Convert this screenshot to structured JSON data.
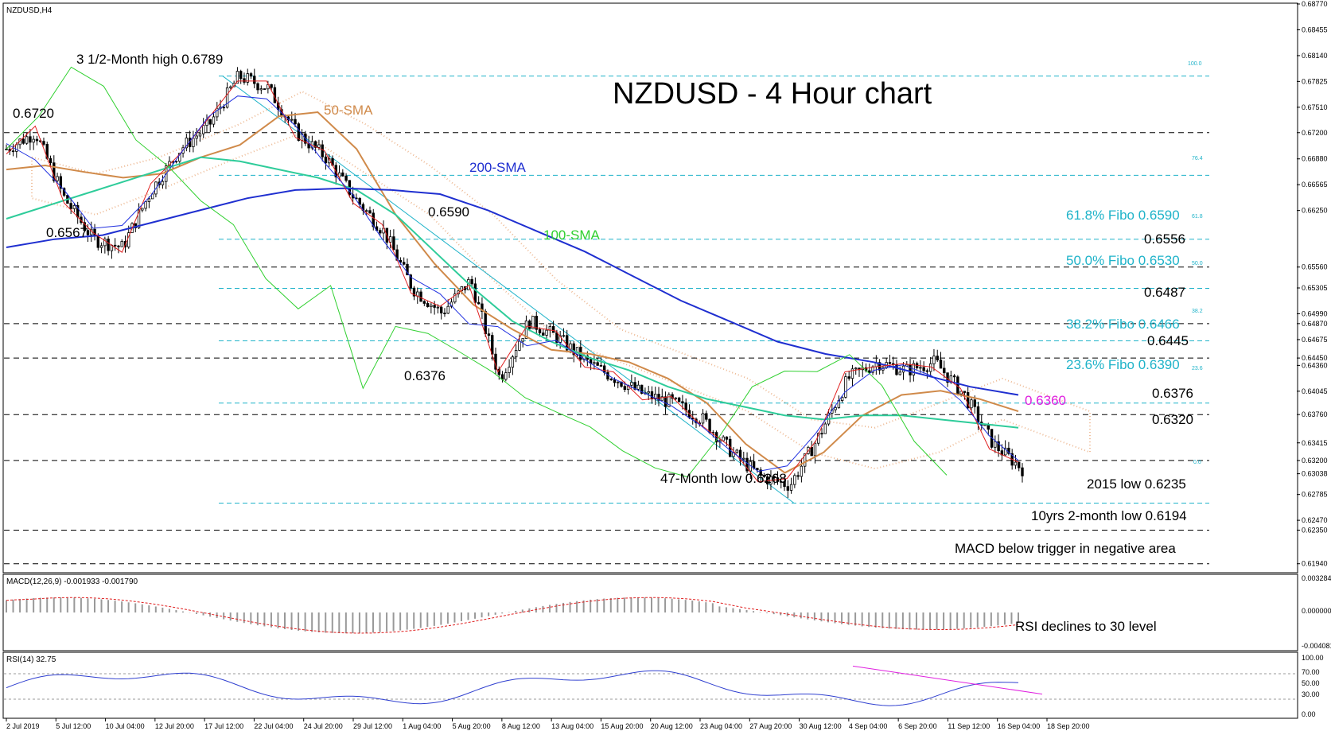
{
  "symbol_label": "NZDUSD,H4",
  "title": "NZDUSD - 4 Hour chart",
  "colors": {
    "sma50": "#d08a4a",
    "sma100": "#2ecc9a",
    "sma200": "#1f2fd0",
    "fibo": "#1fb3c9",
    "tenkan": "#e02020",
    "kijun": "#2030e0",
    "chikou": "#30d030",
    "rsi": "#3040d0",
    "magenta": "#e020e0"
  },
  "annotations": {
    "high": "3 1/2-Month high 0.6789",
    "lvl_6720": "0.6720",
    "lvl_6567": "0.6567",
    "lvl_6590": "0.6590",
    "lvl_6376_left": "0.6376",
    "sma50": "50-SMA",
    "sma100": "100-SMA",
    "sma200": "200-SMA",
    "fibo618": "61.8% Fibo 0.6590",
    "fibo50": "50.0% Fibo 0.6530",
    "fibo382": "38.2% Fibo 0.6466",
    "fibo236": "23.6% Fibo 0.6390",
    "lvl_6556": "0.6556",
    "lvl_6487": "0.6487",
    "lvl_6445": "0.6445",
    "lvl_6376_right": "0.6376",
    "lvl_6320": "0.6320",
    "lvl_6360": "0.6360",
    "low47": "47-Month low 0.6268",
    "low2015": "2015 low 0.6235",
    "low10yr": "10yrs 2-month low 0.6194",
    "fib_small_100": "100.0",
    "fib_small_764": "76.4",
    "fib_small_618": "61.8",
    "fib_small_50": "50.0",
    "fib_small_382": "38.2",
    "fib_small_236": "23.6",
    "fib_small_0": "0.0"
  },
  "macd": {
    "label": "MACD(12,26,9) -0.001933 -0.001790",
    "annotation": "MACD below trigger in negative area",
    "ticks": [
      "0.003284",
      "0.000000",
      "-0.004081"
    ]
  },
  "rsi": {
    "label": "RSI(14) 32.75",
    "annotation": "RSI declines to 30 level",
    "ticks": [
      "100.00",
      "70.00",
      "50.00",
      "30.00",
      "0.00"
    ]
  },
  "chart_data": {
    "type": "line",
    "ylim": [
      0.6185,
      0.6877
    ],
    "y_ticks": [
      "0.68770",
      "0.68455",
      "0.68140",
      "0.67825",
      "0.67510",
      "0.67200",
      "0.66880",
      "0.66565",
      "0.66250",
      "0.65560",
      "0.65305",
      "0.64990",
      "0.64870",
      "0.64675",
      "0.64450",
      "0.64360",
      "0.64045",
      "0.63760",
      "0.63415",
      "0.63200",
      "0.63038",
      "0.62785",
      "0.62470",
      "0.62350",
      "0.61940"
    ],
    "x_ticks": [
      "2 Jul 2019",
      "5 Jul 12:00",
      "10 Jul 04:00",
      "12 Jul 20:00",
      "17 Jul 12:00",
      "22 Jul 04:00",
      "24 Jul 20:00",
      "29 Jul 12:00",
      "1 Aug 04:00",
      "5 Aug 20:00",
      "8 Aug 12:00",
      "13 Aug 04:00",
      "15 Aug 20:00",
      "20 Aug 12:00",
      "23 Aug 04:00",
      "27 Aug 20:00",
      "30 Aug 12:00",
      "4 Sep 04:00",
      "6 Sep 20:00",
      "11 Sep 12:00",
      "16 Sep 04:00",
      "18 Sep 20:00"
    ],
    "horizontal_levels": [
      0.672,
      0.6556,
      0.6487,
      0.6445,
      0.6376,
      0.632,
      0.6235,
      0.6194
    ],
    "fibo_levels": [
      {
        "pct": "100.0",
        "value": 0.6789
      },
      {
        "pct": "76.4",
        "value": 0.6668
      },
      {
        "pct": "61.8",
        "value": 0.659
      },
      {
        "pct": "50.0",
        "value": 0.653
      },
      {
        "pct": "38.2",
        "value": 0.6466
      },
      {
        "pct": "23.6",
        "value": 0.639
      },
      {
        "pct": "0.0",
        "value": 0.6268
      }
    ],
    "series": [
      {
        "name": "50-SMA",
        "values": [
          0.6675,
          0.668,
          0.6672,
          0.6665,
          0.667,
          0.669,
          0.6705,
          0.674,
          0.6745,
          0.67,
          0.662,
          0.656,
          0.651,
          0.648,
          0.6455,
          0.645,
          0.644,
          0.642,
          0.639,
          0.634,
          0.6305,
          0.633,
          0.6375,
          0.64,
          0.6405,
          0.6395,
          0.638
        ]
      },
      {
        "name": "100-SMA",
        "values": [
          0.6615,
          0.663,
          0.6645,
          0.666,
          0.6675,
          0.669,
          0.6685,
          0.6675,
          0.6665,
          0.665,
          0.662,
          0.6575,
          0.653,
          0.649,
          0.6465,
          0.6445,
          0.643,
          0.641,
          0.6395,
          0.6385,
          0.6375,
          0.637,
          0.6375,
          0.6375,
          0.637,
          0.6365,
          0.636
        ]
      },
      {
        "name": "200-SMA",
        "values": [
          0.658,
          0.659,
          0.6595,
          0.661,
          0.6625,
          0.664,
          0.665,
          0.6652,
          0.665,
          0.6645,
          0.6625,
          0.66,
          0.6575,
          0.6545,
          0.6515,
          0.649,
          0.6465,
          0.645,
          0.644,
          0.6425,
          0.641,
          0.64
        ]
      },
      {
        "name": "Price",
        "values": [
          0.67,
          0.672,
          0.664,
          0.659,
          0.658,
          0.665,
          0.67,
          0.673,
          0.6789,
          0.6775,
          0.672,
          0.669,
          0.664,
          0.66,
          0.653,
          0.65,
          0.654,
          0.642,
          0.649,
          0.647,
          0.644,
          0.642,
          0.64,
          0.639,
          0.637,
          0.633,
          0.63,
          0.629,
          0.635,
          0.642,
          0.644,
          0.643,
          0.644,
          0.64,
          0.634,
          0.631
        ]
      }
    ]
  }
}
